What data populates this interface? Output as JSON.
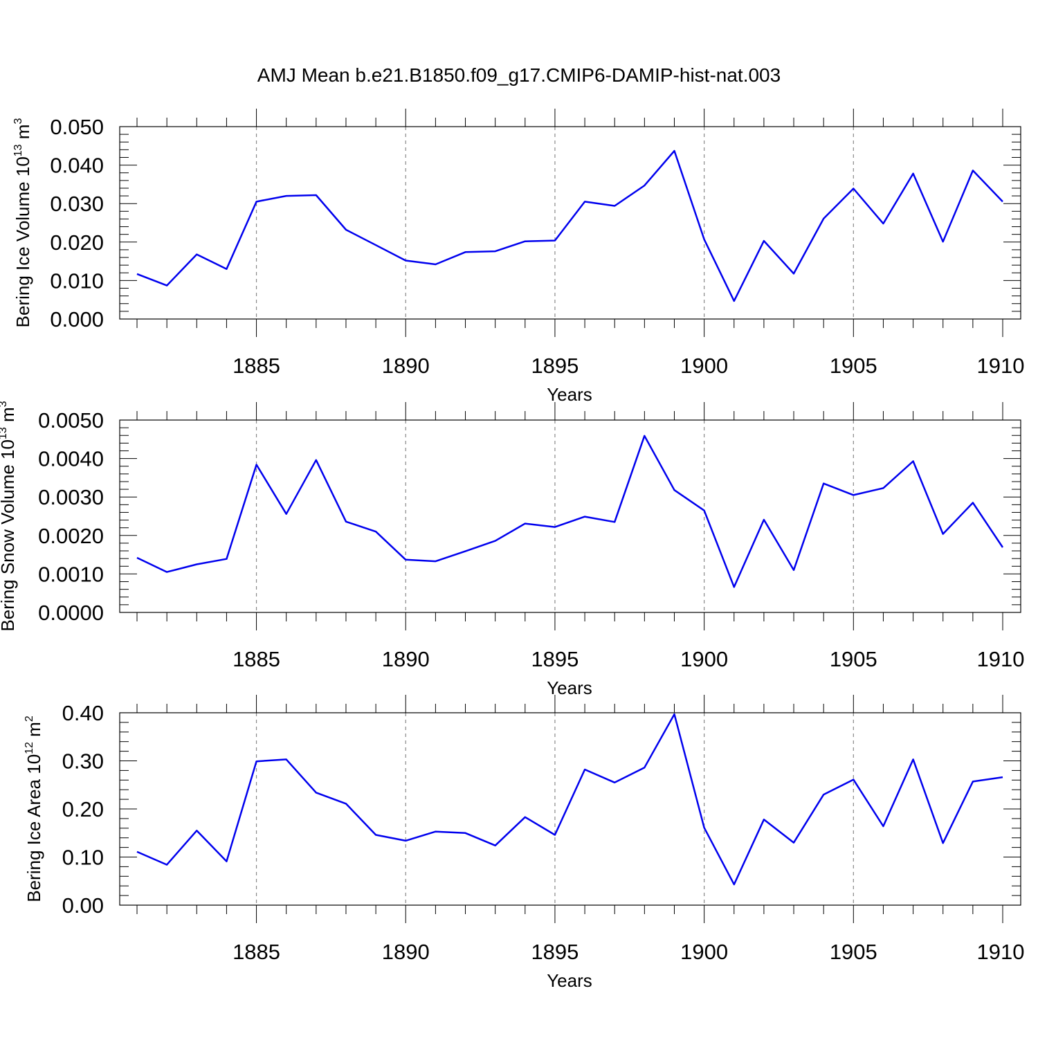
{
  "figure_title": "AMJ Mean b.e21.B1850.f09_g17.CMIP6-DAMIP-hist-nat.003",
  "chart_data": [
    {
      "type": "line",
      "xlabel": "Years",
      "ylabel": "Bering Ice Volume 10",
      "ylabel_exp": "13",
      "ylabel_unit": " m",
      "ylabel_unit_exp": "3",
      "xlim": [
        1881,
        1910
      ],
      "ylim": [
        0,
        0.05
      ],
      "x_ticks": [
        1885,
        1890,
        1895,
        1900,
        1905,
        1910
      ],
      "x_tick_labels": [
        "1885",
        "1890",
        "1895",
        "1900",
        "1905",
        "1910"
      ],
      "y_ticks": [
        0,
        0.01,
        0.02,
        0.03,
        0.04,
        0.05
      ],
      "y_tick_labels": [
        "0.000",
        "0.010",
        "0.020",
        "0.030",
        "0.040",
        "0.050"
      ],
      "grid": "dashed vertical at major x ticks",
      "color": "#0000ee",
      "x": [
        1881,
        1882,
        1883,
        1884,
        1885,
        1886,
        1887,
        1888,
        1889,
        1890,
        1891,
        1892,
        1893,
        1894,
        1895,
        1896,
        1897,
        1898,
        1899,
        1900,
        1901,
        1902,
        1903,
        1904,
        1905,
        1906,
        1907,
        1908,
        1909,
        1910
      ],
      "y": [
        0.0117,
        0.0087,
        0.0168,
        0.013,
        0.0305,
        0.032,
        0.0322,
        0.0232,
        0.0192,
        0.0152,
        0.0142,
        0.0174,
        0.0176,
        0.0202,
        0.0204,
        0.0305,
        0.0294,
        0.0347,
        0.0437,
        0.0207,
        0.0047,
        0.0203,
        0.0118,
        0.0261,
        0.0339,
        0.0248,
        0.0378,
        0.0201,
        0.0386,
        0.0305
      ]
    },
    {
      "type": "line",
      "xlabel": "Years",
      "ylabel": "Bering Snow Volume 10",
      "ylabel_exp": "13",
      "ylabel_unit": " m",
      "ylabel_unit_exp": "3",
      "xlim": [
        1881,
        1910
      ],
      "ylim": [
        0,
        0.005
      ],
      "x_ticks": [
        1885,
        1890,
        1895,
        1900,
        1905,
        1910
      ],
      "x_tick_labels": [
        "1885",
        "1890",
        "1895",
        "1900",
        "1905",
        "1910"
      ],
      "y_ticks": [
        0,
        0.001,
        0.002,
        0.003,
        0.004,
        0.005
      ],
      "y_tick_labels": [
        "0.0000",
        "0.0010",
        "0.0020",
        "0.0030",
        "0.0040",
        "0.0050"
      ],
      "grid": "dashed vertical at major x ticks",
      "color": "#0000ee",
      "x": [
        1881,
        1882,
        1883,
        1884,
        1885,
        1886,
        1887,
        1888,
        1889,
        1890,
        1891,
        1892,
        1893,
        1894,
        1895,
        1896,
        1897,
        1898,
        1899,
        1900,
        1901,
        1902,
        1903,
        1904,
        1905,
        1906,
        1907,
        1908,
        1909,
        1910
      ],
      "y": [
        0.00142,
        0.00105,
        0.00125,
        0.00139,
        0.00384,
        0.00256,
        0.00396,
        0.00236,
        0.0021,
        0.00137,
        0.00133,
        0.00159,
        0.00186,
        0.00231,
        0.00222,
        0.00249,
        0.00235,
        0.00459,
        0.00318,
        0.00265,
        0.00066,
        0.00241,
        0.0011,
        0.00335,
        0.00305,
        0.00323,
        0.00393,
        0.00204,
        0.00285,
        0.00169
      ]
    },
    {
      "type": "line",
      "xlabel": "Years",
      "ylabel": "Bering Ice Area 10",
      "ylabel_exp": "12",
      "ylabel_unit": " m",
      "ylabel_unit_exp": "2",
      "xlim": [
        1881,
        1910
      ],
      "ylim": [
        0,
        0.4
      ],
      "x_ticks": [
        1885,
        1890,
        1895,
        1900,
        1905,
        1910
      ],
      "x_tick_labels": [
        "1885",
        "1890",
        "1895",
        "1900",
        "1905",
        "1910"
      ],
      "y_ticks": [
        0,
        0.1,
        0.2,
        0.3,
        0.4
      ],
      "y_tick_labels": [
        "0.00",
        "0.10",
        "0.20",
        "0.30",
        "0.40"
      ],
      "grid": "dashed vertical at major x ticks",
      "color": "#0000ee",
      "x": [
        1881,
        1882,
        1883,
        1884,
        1885,
        1886,
        1887,
        1888,
        1889,
        1890,
        1891,
        1892,
        1893,
        1894,
        1895,
        1896,
        1897,
        1898,
        1899,
        1900,
        1901,
        1902,
        1903,
        1904,
        1905,
        1906,
        1907,
        1908,
        1909,
        1910
      ],
      "y": [
        0.111,
        0.084,
        0.155,
        0.091,
        0.299,
        0.303,
        0.234,
        0.211,
        0.146,
        0.134,
        0.153,
        0.15,
        0.124,
        0.183,
        0.146,
        0.282,
        0.255,
        0.286,
        0.397,
        0.161,
        0.043,
        0.178,
        0.13,
        0.23,
        0.261,
        0.164,
        0.303,
        0.129,
        0.257,
        0.266
      ]
    }
  ]
}
